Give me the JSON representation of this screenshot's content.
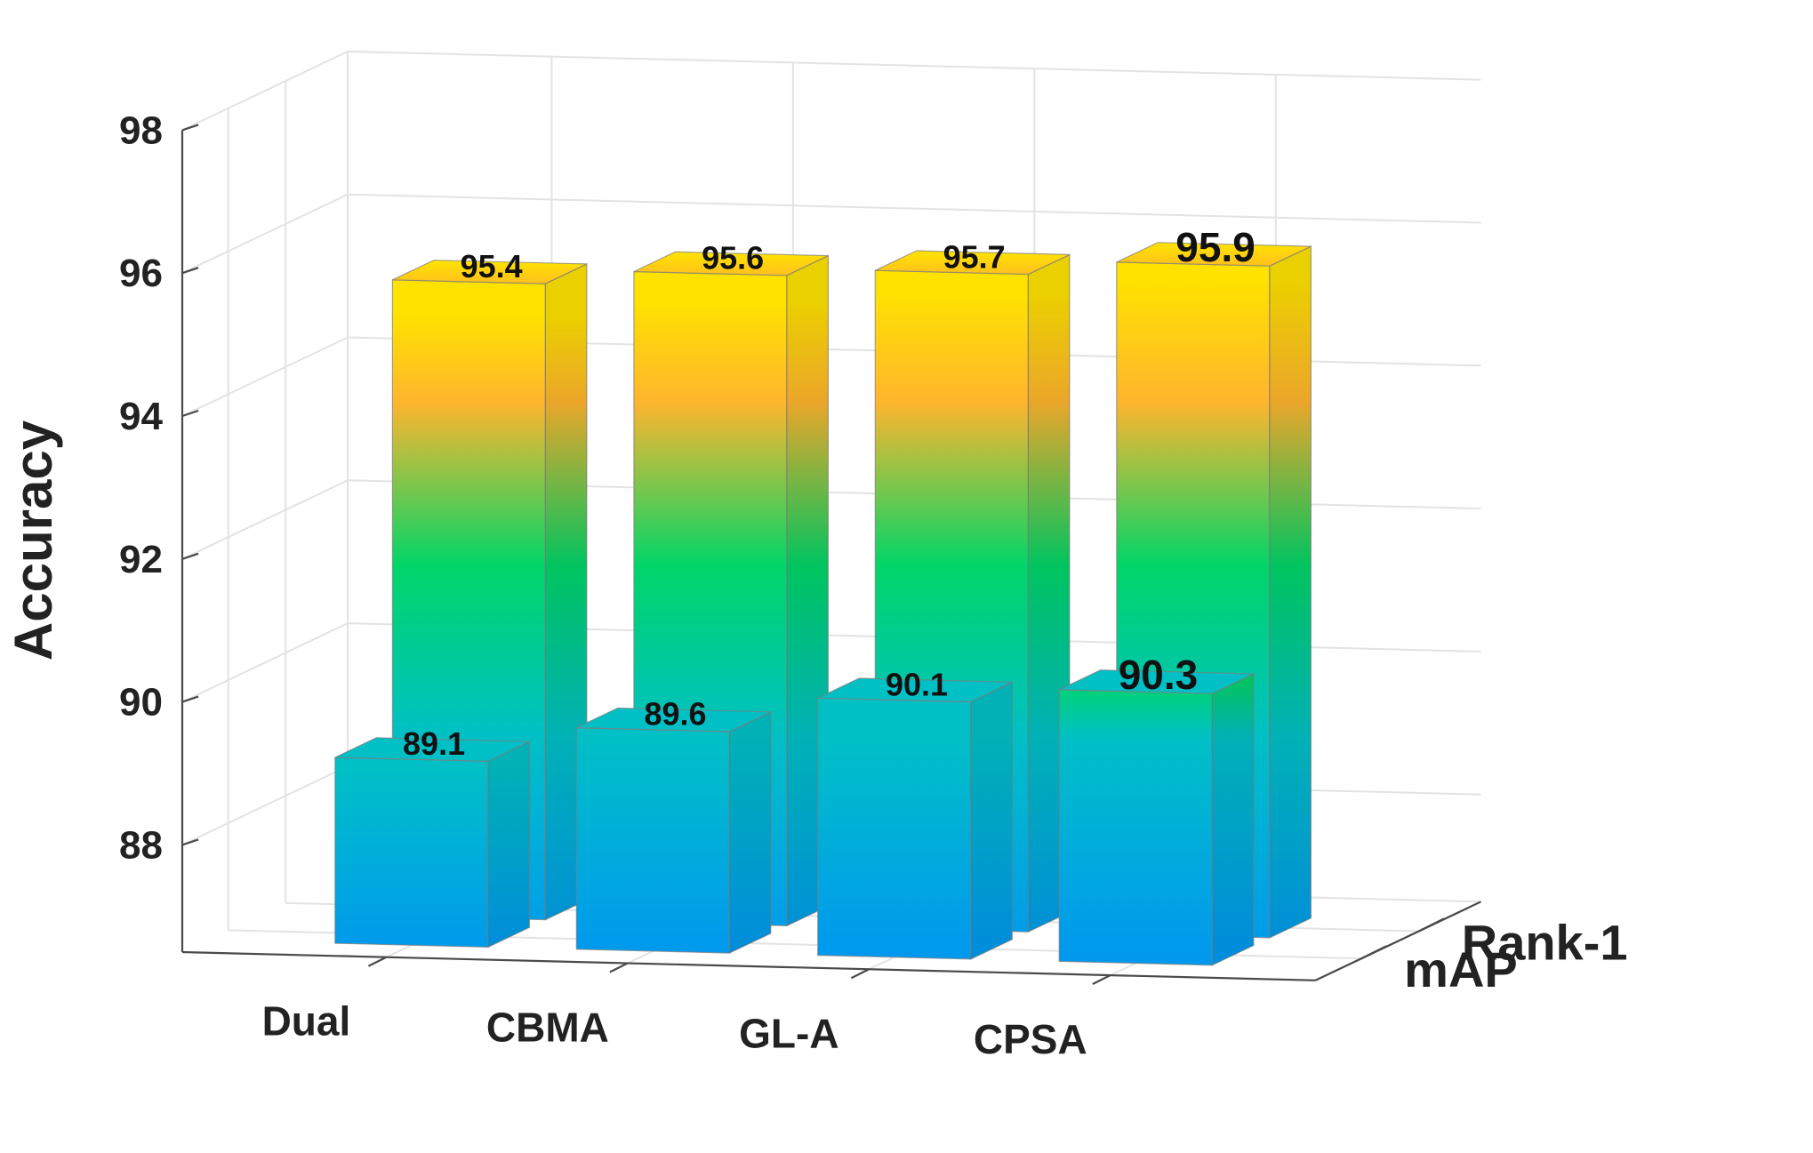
{
  "chart_data": {
    "type": "bar",
    "subtype": "3d-grouped",
    "title": "",
    "ylabel": "Accuracy",
    "ylim": [
      86.5,
      98
    ],
    "yticks": [
      88,
      90,
      92,
      94,
      96,
      98
    ],
    "categories": [
      "Dual",
      "CBMA",
      "GL-A",
      "CPSA"
    ],
    "series": [
      {
        "name": "mAP",
        "values": [
          89.1,
          89.6,
          90.1,
          90.3
        ]
      },
      {
        "name": "Rank-1",
        "values": [
          95.4,
          95.6,
          95.7,
          95.9
        ]
      }
    ],
    "colormap": [
      "#0099ee",
      "#00d568",
      "#ffb52e",
      "#ffe200"
    ],
    "grid": true
  }
}
